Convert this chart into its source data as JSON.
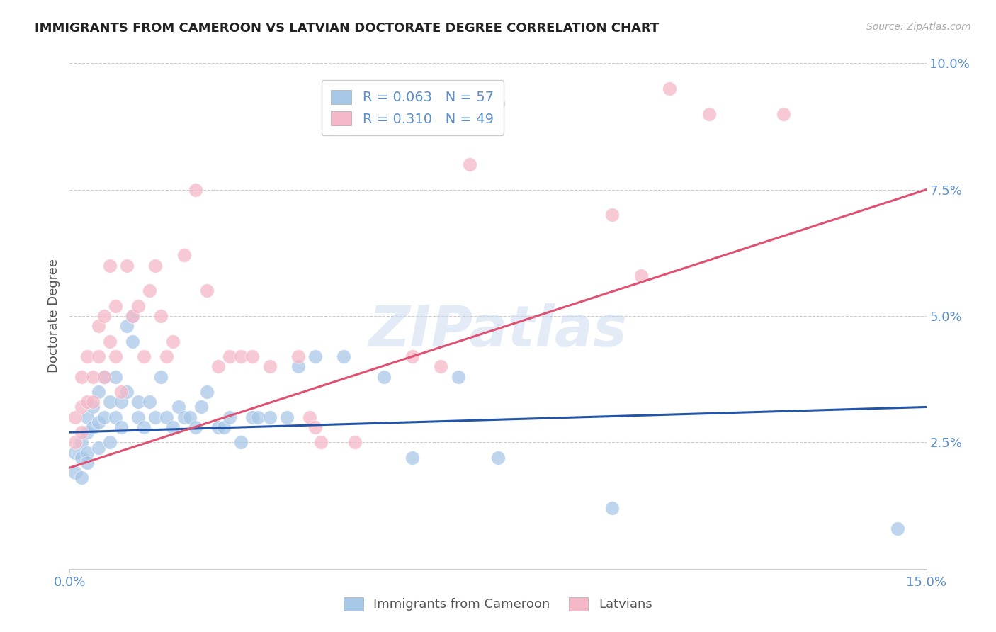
{
  "title": "IMMIGRANTS FROM CAMEROON VS LATVIAN DOCTORATE DEGREE CORRELATION CHART",
  "source": "Source: ZipAtlas.com",
  "ylabel": "Doctorate Degree",
  "xlim": [
    0.0,
    0.15
  ],
  "ylim": [
    0.0,
    0.1
  ],
  "yticks_right": [
    0.0,
    0.025,
    0.05,
    0.075,
    0.1
  ],
  "ytick_labels_right": [
    "",
    "2.5%",
    "5.0%",
    "7.5%",
    "10.0%"
  ],
  "blue_color": "#a8c8e8",
  "pink_color": "#f5b8c8",
  "line_blue": "#2255aa",
  "line_pink": "#e05070",
  "legend_r_blue": "0.063",
  "legend_n_blue": "57",
  "legend_r_pink": "0.310",
  "legend_n_pink": "49",
  "watermark": "ZIPatlas",
  "blue_line_x0": 0.0,
  "blue_line_x1": 0.15,
  "blue_line_y0": 0.027,
  "blue_line_y1": 0.032,
  "pink_line_x0": 0.0,
  "pink_line_x1": 0.15,
  "pink_line_y0": 0.02,
  "pink_line_y1": 0.075,
  "blue_x": [
    0.001,
    0.001,
    0.002,
    0.002,
    0.002,
    0.003,
    0.003,
    0.003,
    0.003,
    0.004,
    0.004,
    0.005,
    0.005,
    0.005,
    0.006,
    0.006,
    0.007,
    0.007,
    0.008,
    0.008,
    0.009,
    0.009,
    0.01,
    0.01,
    0.011,
    0.011,
    0.012,
    0.012,
    0.013,
    0.014,
    0.015,
    0.016,
    0.017,
    0.018,
    0.019,
    0.02,
    0.021,
    0.022,
    0.023,
    0.024,
    0.026,
    0.027,
    0.028,
    0.03,
    0.032,
    0.033,
    0.035,
    0.038,
    0.04,
    0.043,
    0.048,
    0.055,
    0.06,
    0.068,
    0.075,
    0.095,
    0.145
  ],
  "blue_y": [
    0.023,
    0.019,
    0.025,
    0.022,
    0.018,
    0.027,
    0.03,
    0.023,
    0.021,
    0.032,
    0.028,
    0.035,
    0.029,
    0.024,
    0.038,
    0.03,
    0.025,
    0.033,
    0.038,
    0.03,
    0.033,
    0.028,
    0.048,
    0.035,
    0.045,
    0.05,
    0.033,
    0.03,
    0.028,
    0.033,
    0.03,
    0.038,
    0.03,
    0.028,
    0.032,
    0.03,
    0.03,
    0.028,
    0.032,
    0.035,
    0.028,
    0.028,
    0.03,
    0.025,
    0.03,
    0.03,
    0.03,
    0.03,
    0.04,
    0.042,
    0.042,
    0.038,
    0.022,
    0.038,
    0.022,
    0.012,
    0.008
  ],
  "pink_x": [
    0.001,
    0.001,
    0.002,
    0.002,
    0.002,
    0.003,
    0.003,
    0.004,
    0.004,
    0.005,
    0.005,
    0.006,
    0.006,
    0.007,
    0.007,
    0.008,
    0.008,
    0.009,
    0.01,
    0.011,
    0.012,
    0.013,
    0.014,
    0.015,
    0.016,
    0.017,
    0.018,
    0.02,
    0.022,
    0.024,
    0.026,
    0.028,
    0.03,
    0.032,
    0.035,
    0.04,
    0.042,
    0.043,
    0.044,
    0.05,
    0.06,
    0.065,
    0.07,
    0.075,
    0.095,
    0.1,
    0.105,
    0.112,
    0.125
  ],
  "pink_y": [
    0.03,
    0.025,
    0.038,
    0.032,
    0.027,
    0.033,
    0.042,
    0.038,
    0.033,
    0.048,
    0.042,
    0.05,
    0.038,
    0.06,
    0.045,
    0.042,
    0.052,
    0.035,
    0.06,
    0.05,
    0.052,
    0.042,
    0.055,
    0.06,
    0.05,
    0.042,
    0.045,
    0.062,
    0.075,
    0.055,
    0.04,
    0.042,
    0.042,
    0.042,
    0.04,
    0.042,
    0.03,
    0.028,
    0.025,
    0.025,
    0.042,
    0.04,
    0.08,
    0.092,
    0.07,
    0.058,
    0.095,
    0.09,
    0.09
  ]
}
